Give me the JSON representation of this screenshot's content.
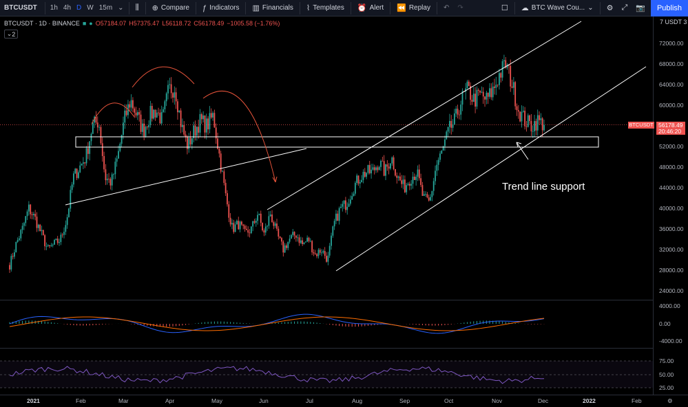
{
  "toolbar": {
    "symbol": "BTCUSDT",
    "timeframes": [
      "1h",
      "4h",
      "D",
      "W",
      "15m"
    ],
    "active_timeframe": "D",
    "compare": "Compare",
    "indicators": "Indicators",
    "financials": "Financials",
    "templates": "Templates",
    "alert": "Alert",
    "replay": "Replay",
    "layout_name": "BTC Wave Cou...",
    "publish": "Publish"
  },
  "legend": {
    "title": "BTCUSDT · 1D · BINANCE",
    "open": "O57184.07",
    "high": "H57375.47",
    "low": "L56118.72",
    "close": "C56178.49",
    "change": "−1005.58 (−1.76%)",
    "badge": "2"
  },
  "axis": {
    "scale_label": "USDT",
    "scale_prefix": "7",
    "scale_suffix": "3",
    "price_labels": [
      "72000.00",
      "68000.00",
      "64000.00",
      "60000.00",
      "56000.00",
      "52000.00",
      "48000.00",
      "44000.00",
      "40000.00",
      "36000.00",
      "32000.00",
      "28000.00",
      "24000.00"
    ],
    "macd_labels": [
      "4000.00",
      "0.00",
      "-4000.00"
    ],
    "rsi_labels": [
      "75.00",
      "50.00",
      "25.00"
    ],
    "current_symbol": "BTCUSDT",
    "current_price": "56178.49",
    "countdown": "20:46:20"
  },
  "time_axis": [
    "2021",
    "Feb",
    "Mar",
    "Apr",
    "May",
    "Jun",
    "Jul",
    "Aug",
    "Sep",
    "Oct",
    "Nov",
    "Dec",
    "2022",
    "Feb"
  ],
  "annotation": "Trend line support",
  "colors": {
    "up": "#26a69a",
    "down": "#ef5350",
    "macd": "#2962ff",
    "signal": "#ff6d00",
    "rsi": "#7e57c2",
    "accent": "#2962ff"
  },
  "chart_data": {
    "type": "candlestick",
    "symbol": "BTCUSDT",
    "interval": "1D",
    "exchange": "BINANCE",
    "ylim": [
      22000,
      74000
    ],
    "closes_by_month": {
      "2021-01": [
        29000,
        33000,
        36000,
        40000,
        38000,
        35000,
        32000,
        33000
      ],
      "2021-02": [
        34000,
        38000,
        46000,
        48000,
        50000,
        56000,
        57000,
        46000
      ],
      "2021-03": [
        45000,
        50000,
        57000,
        61000,
        58000,
        55000,
        58000
      ],
      "2021-04": [
        59000,
        57000,
        63000,
        63500,
        56000,
        52000,
        55000
      ],
      "2021-05": [
        57000,
        56000,
        58000,
        50000,
        42000,
        36000,
        37000,
        35000
      ],
      "2021-06": [
        36000,
        39000,
        35000,
        39000,
        35000,
        32000,
        34000
      ],
      "2021-07": [
        35000,
        33000,
        34000,
        31000,
        32000,
        30000,
        37000,
        40000
      ],
      "2021-08": [
        41000,
        44000,
        46000,
        47000,
        47000,
        49000,
        47000
      ],
      "2021-09": [
        50000,
        46000,
        44000,
        46000,
        47000,
        42000,
        41000,
        48000
      ],
      "2021-10": [
        51000,
        55000,
        57000,
        61000,
        63000,
        61000,
        62000,
        61000
      ],
      "2021-11": [
        63000,
        66000,
        68000,
        64000,
        59000,
        57000,
        56000,
        57000
      ],
      "2021-12": [
        56178.49
      ]
    }
  }
}
